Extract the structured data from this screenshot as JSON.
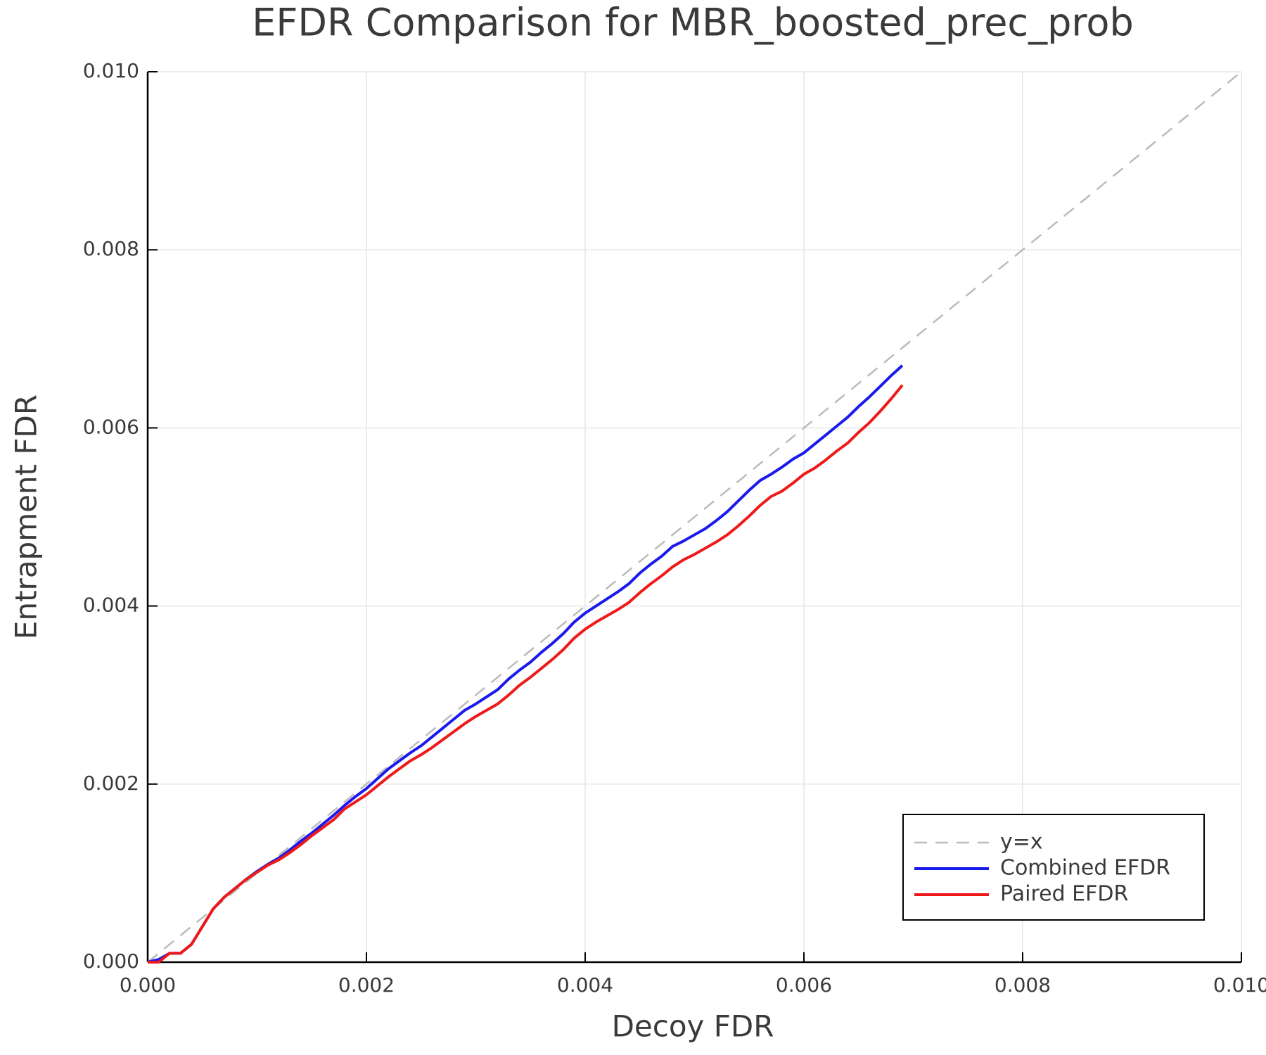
{
  "chart_data": {
    "type": "line",
    "title": "EFDR Comparison for MBR_boosted_prec_prob",
    "x_label": "Decoy FDR",
    "y_label": "Entrapment FDR",
    "xlim": [
      0,
      0.01
    ],
    "ylim": [
      0,
      0.01
    ],
    "xticks": [
      {
        "value": 0,
        "label": "0.000"
      },
      {
        "value": 0.002,
        "label": "0.002"
      },
      {
        "value": 0.004,
        "label": "0.004"
      },
      {
        "value": 0.006,
        "label": "0.006"
      },
      {
        "value": 0.008,
        "label": "0.008"
      },
      {
        "value": 0.01,
        "label": "0.010"
      }
    ],
    "yticks": [
      {
        "value": 0,
        "label": "0.000"
      },
      {
        "value": 0.002,
        "label": "0.002"
      },
      {
        "value": 0.004,
        "label": "0.004"
      },
      {
        "value": 0.006,
        "label": "0.006"
      },
      {
        "value": 0.008,
        "label": "0.008"
      },
      {
        "value": 0.01,
        "label": "0.010"
      }
    ],
    "grid": true,
    "legend": "lower right",
    "series": [
      {
        "name": "y=x",
        "color": "#bbbbbb",
        "dash": true,
        "x": [
          0,
          0.01
        ],
        "values": [
          0,
          0.01
        ]
      },
      {
        "name": "Combined EFDR",
        "color": "#1a1aee",
        "x": [
          0,
          0.0001,
          0.0002,
          0.0003,
          0.0004,
          0.0005,
          0.0006,
          0.0007,
          0.0008,
          0.0009,
          0.001,
          0.0011,
          0.0012,
          0.0013,
          0.0014,
          0.0015,
          0.0016,
          0.0017,
          0.0018,
          0.0019,
          0.002,
          0.0021,
          0.0022,
          0.0023,
          0.0024,
          0.0025,
          0.0026,
          0.0027,
          0.0028,
          0.0029,
          0.003,
          0.0031,
          0.0032,
          0.0033,
          0.0034,
          0.0035,
          0.0036,
          0.0037,
          0.0038,
          0.0039,
          0.004,
          0.0041,
          0.0042,
          0.0043,
          0.0044,
          0.0045,
          0.0046,
          0.0047,
          0.0048,
          0.0049,
          0.005,
          0.0051,
          0.0052,
          0.0053,
          0.0054,
          0.0055,
          0.0056,
          0.0057,
          0.0058,
          0.0059,
          0.006,
          0.0061,
          0.0062,
          0.0063,
          0.0064,
          0.0065,
          0.0066,
          0.0067,
          0.0068,
          0.0069
        ],
        "values": [
          0,
          3e-05,
          0.0001,
          0.0001,
          0.0002,
          0.0004,
          0.0006,
          0.00073,
          0.00083,
          0.00093,
          0.00102,
          0.0011,
          0.00117,
          0.00126,
          0.00136,
          0.00145,
          0.00155,
          0.00165,
          0.00176,
          0.00186,
          0.00195,
          0.00206,
          0.00217,
          0.00226,
          0.00235,
          0.00243,
          0.00253,
          0.00263,
          0.00273,
          0.00283,
          0.0029,
          0.00298,
          0.00306,
          0.00318,
          0.00328,
          0.00337,
          0.00348,
          0.00358,
          0.00369,
          0.00382,
          0.00392,
          0.004,
          0.00408,
          0.00416,
          0.00425,
          0.00437,
          0.00447,
          0.00456,
          0.00467,
          0.00473,
          0.0048,
          0.00487,
          0.00496,
          0.00506,
          0.00518,
          0.0053,
          0.00541,
          0.00548,
          0.00556,
          0.00565,
          0.00572,
          0.00582,
          0.00592,
          0.00602,
          0.00612,
          0.00624,
          0.00635,
          0.00647,
          0.00659,
          0.0067
        ]
      },
      {
        "name": "Paired EFDR",
        "color": "#ee1a1a",
        "x": [
          0,
          0.0001,
          0.0002,
          0.0003,
          0.0004,
          0.0005,
          0.0006,
          0.0007,
          0.0008,
          0.0009,
          0.001,
          0.0011,
          0.0012,
          0.0013,
          0.0014,
          0.0015,
          0.0016,
          0.0017,
          0.0018,
          0.0019,
          0.002,
          0.0021,
          0.0022,
          0.0023,
          0.0024,
          0.0025,
          0.0026,
          0.0027,
          0.0028,
          0.0029,
          0.003,
          0.0031,
          0.0032,
          0.0033,
          0.0034,
          0.0035,
          0.0036,
          0.0037,
          0.0038,
          0.0039,
          0.004,
          0.0041,
          0.0042,
          0.0043,
          0.0044,
          0.0045,
          0.0046,
          0.0047,
          0.0048,
          0.0049,
          0.005,
          0.0051,
          0.0052,
          0.0053,
          0.0054,
          0.0055,
          0.0056,
          0.0057,
          0.0058,
          0.0059,
          0.006,
          0.0061,
          0.0062,
          0.0063,
          0.0064,
          0.0065,
          0.0066,
          0.0067,
          0.0068,
          0.0069
        ],
        "values": [
          0,
          0,
          0.0001,
          0.0001,
          0.0002,
          0.0004,
          0.0006,
          0.00073,
          0.00083,
          0.00093,
          0.00101,
          0.00109,
          0.00115,
          0.00123,
          0.00132,
          0.00142,
          0.00151,
          0.0016,
          0.00172,
          0.0018,
          0.00188,
          0.00198,
          0.00208,
          0.00217,
          0.00226,
          0.00233,
          0.00241,
          0.0025,
          0.00259,
          0.00268,
          0.00276,
          0.00283,
          0.0029,
          0.003,
          0.00311,
          0.0032,
          0.0033,
          0.0034,
          0.00351,
          0.00364,
          0.00374,
          0.00382,
          0.00389,
          0.00396,
          0.00404,
          0.00415,
          0.00425,
          0.00434,
          0.00444,
          0.00452,
          0.00458,
          0.00465,
          0.00472,
          0.0048,
          0.0049,
          0.00501,
          0.00513,
          0.00523,
          0.00529,
          0.00538,
          0.00548,
          0.00555,
          0.00564,
          0.00574,
          0.00583,
          0.00595,
          0.00606,
          0.00619,
          0.00633,
          0.00648
        ]
      }
    ]
  }
}
